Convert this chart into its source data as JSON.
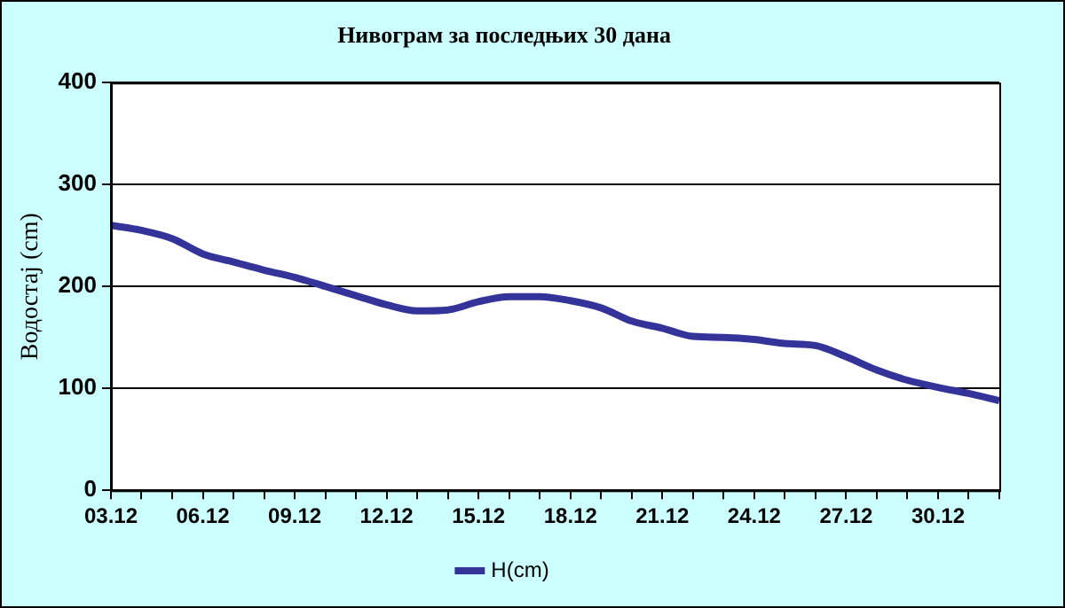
{
  "chart_data": {
    "type": "line",
    "title": "Нивограм за последњих 30 дана",
    "ylabel": "Водостај (cm)",
    "categories": [
      "03.12",
      null,
      null,
      "06.12",
      null,
      null,
      "09.12",
      null,
      null,
      "12.12",
      null,
      null,
      "15.12",
      null,
      null,
      "18.12",
      null,
      null,
      "21.12",
      null,
      null,
      "24.12",
      null,
      null,
      "27.12",
      null,
      null,
      "30.12",
      null,
      null
    ],
    "series": [
      {
        "name": "H(cm)",
        "color": "#333399",
        "values": [
          260,
          255,
          247,
          232,
          224,
          216,
          209,
          200,
          191,
          182,
          176,
          177,
          185,
          190,
          190,
          186,
          179,
          166,
          159,
          151,
          150,
          148,
          144,
          142,
          131,
          118,
          108,
          101,
          95,
          88
        ]
      }
    ],
    "ylim": [
      0,
      400
    ],
    "yticks": [
      0,
      100,
      200,
      300,
      400
    ],
    "grid": "y",
    "legend": "bottom",
    "marker": "none",
    "line_style": "solid"
  }
}
